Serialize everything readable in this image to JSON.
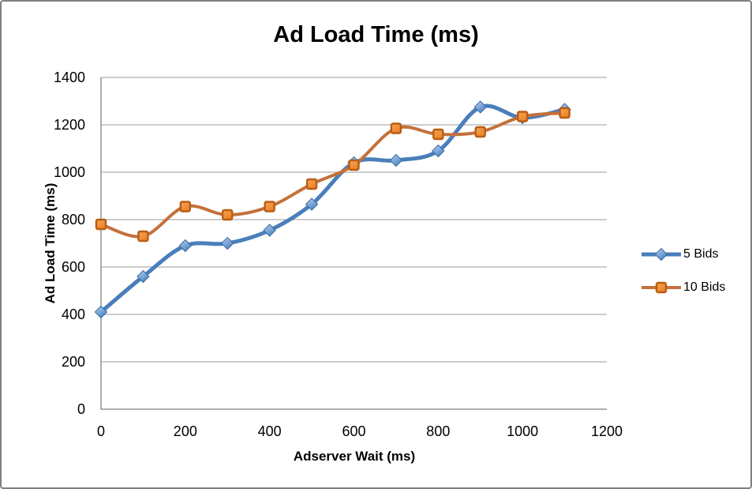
{
  "chart_data": {
    "type": "line",
    "smoothed": true,
    "title": "Ad Load Time (ms)",
    "xlabel": "Adserver Wait (ms)",
    "ylabel": "Ad Load Time (ms)",
    "x": [
      0,
      100,
      200,
      300,
      400,
      500,
      600,
      700,
      800,
      900,
      1000,
      1100
    ],
    "series": [
      {
        "name": "5 Bids",
        "values": [
          410,
          560,
          690,
          700,
          755,
          865,
          1040,
          1050,
          1090,
          1275,
          1230,
          1265
        ],
        "color": "#4A7EBB",
        "marker": "diamond",
        "marker_fill_light": "#B9D3EF",
        "marker_fill_dark": "#4E83C4",
        "marker_stroke": "#3A6BA5",
        "marker_size": 7.5,
        "line_width": 5
      },
      {
        "name": "10 Bids",
        "values": [
          780,
          730,
          855,
          820,
          855,
          950,
          1030,
          1185,
          1160,
          1170,
          1235,
          1250
        ],
        "color": "#C4713B",
        "marker": "square",
        "marker_fill_light": "#F5A45A",
        "marker_fill_dark": "#EC8426",
        "marker_stroke": "#B95D15",
        "marker_size": 6,
        "line_width": 4
      }
    ],
    "xlim": [
      0,
      1200
    ],
    "ylim": [
      0,
      1400
    ],
    "x_ticks": [
      0,
      200,
      400,
      600,
      800,
      1000,
      1200
    ],
    "y_ticks": [
      0,
      200,
      400,
      600,
      800,
      1000,
      1200,
      1400
    ],
    "grid": true,
    "legend_position": "right",
    "colors": {
      "gridline": "#9B9B9B",
      "axis": "#808080",
      "text": "#000000",
      "background": "#FFFFFF",
      "border": "#7F7F7F"
    }
  }
}
